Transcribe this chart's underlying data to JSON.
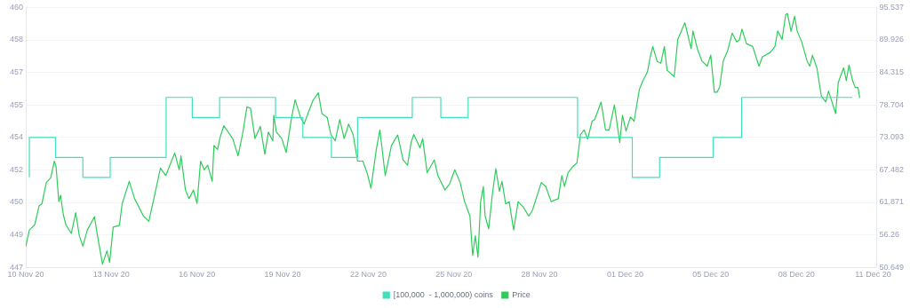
{
  "chart_data": {
    "type": "line",
    "legend": "bottom",
    "grid": "y",
    "marker": "none",
    "xlim": [
      "--11-10",
      "--12-09T19:30"
    ],
    "xticks": [
      {
        "value": "--11-10",
        "label": "10 Nov 20"
      },
      {
        "value": "--11-13",
        "label": "13 Nov 20"
      },
      {
        "value": "--11-16",
        "label": "16 Nov 20"
      },
      {
        "value": "--11-19",
        "label": "19 Nov 20"
      },
      {
        "value": "--11-22",
        "label": "22 Nov 20"
      },
      {
        "value": "--11-25",
        "label": "25 Nov 20"
      },
      {
        "value": "--11-28",
        "label": "28 Nov 20"
      },
      {
        "value": "--12-01",
        "label": "01 Dec 20"
      },
      {
        "value": "--12-04",
        "label": "05 Dec 20"
      },
      {
        "value": "--12-07",
        "label": "08 Dec 20"
      },
      {
        "value": "--12-09T16:30",
        "label": "11 Dec 20"
      }
    ],
    "ylim": [
      447,
      460
    ],
    "yticks": [
      {
        "value": 447,
        "label": "447"
      },
      {
        "value": 448.625,
        "label": "449"
      },
      {
        "value": 450.25,
        "label": "450"
      },
      {
        "value": 451.875,
        "label": "452"
      },
      {
        "value": 453.5,
        "label": "454"
      },
      {
        "value": 455.125,
        "label": "455"
      },
      {
        "value": 456.75,
        "label": "457"
      },
      {
        "value": 458.375,
        "label": "458"
      },
      {
        "value": 460,
        "label": "460"
      }
    ],
    "y2lim": [
      50.649,
      95.537
    ],
    "y2ticks": [
      50.649,
      56.26,
      61.871,
      67.482,
      73.093,
      78.704,
      84.315,
      89.926,
      95.537
    ],
    "series": [
      {
        "name": "[100,000  - 1,000,000) coins",
        "type": "step",
        "color": "#3fe0bb",
        "x": [
          "--11-10T03:00",
          "--11-11T01:00",
          "--11-12T00:00",
          "--11-12T23:00",
          "--11-14T22:00",
          "--11-15T20:00",
          "--11-16T19:00",
          "--11-18T18:00",
          "--11-19T17:00",
          "--11-20T17:00",
          "--11-21T15:00",
          "--11-23T13:00",
          "--11-24T13:00",
          "--11-25T12:00",
          "--11-29T08:00",
          "--12-01T06:00",
          "--12-02T05:00",
          "--12-04T02:00",
          "--12-05T02:00",
          "--12-07T01:00",
          "--12-08T23:00"
        ],
        "values": [
          451.5,
          453.5,
          452.5,
          451.5,
          452.5,
          455.5,
          454.5,
          455.5,
          454.5,
          453.5,
          452.5,
          454.5,
          455.5,
          454.5,
          455.5,
          453.5,
          451.5,
          452.5,
          453.5,
          455.5,
          455.5
        ]
      },
      {
        "name": "Price",
        "type": "line",
        "axis": "y2",
        "color": "#2fcc5b",
        "x": [
          "--11-10T00:00",
          "--11-10T03:00",
          "--11-10T07:30",
          "--11-10T11:15",
          "--11-10T13:30",
          "--11-10T17:15",
          "--11-10T21:00",
          "--11-11T00:00",
          "--11-11T01:30",
          "--11-11T03:45",
          "--11-11T05:15",
          "--11-11T07:30",
          "--11-11T09:45",
          "--11-11T14:15",
          "--11-11T18:00",
          "--11-11T21:00",
          "--11-12T00:00",
          "--11-12T03:45",
          "--11-12T09:45",
          "--11-12T12:00",
          "--11-12T16:30",
          "--11-12T20:15",
          "--11-12T22:30",
          "--11-13T01:30",
          "--11-13T06:45",
          "--11-13T09:00",
          "--11-13T15:00",
          "--11-13T19:30",
          "--11-14T03:00",
          "--11-14T07:30",
          "--11-14T12:45",
          "--11-14T17:15",
          "--11-14T21:45",
          "--11-15T05:15",
          "--11-15T09:00",
          "--11-15T10:30",
          "--11-15T14:15",
          "--11-15T17:15",
          "--11-15T21:00",
          "--11-16T00:00",
          "--11-16T03:00",
          "--11-16T06:00",
          "--11-16T09:00",
          "--11-16T12:45",
          "--11-16T14:15",
          "--11-16T17:15",
          "--11-16T19:30",
          "--11-16T22:30",
          "--11-17T06:00",
          "--11-17T10:30",
          "--11-17T14:15",
          "--11-17T18:00",
          "--11-17T21:00",
          "--11-18T00:45",
          "--11-18T05:15",
          "--11-18T09:00",
          "--11-18T12:00",
          "--11-18T15:45",
          "--11-18T16:30",
          "--11-18T18:45",
          "--11-18T23:15",
          "--11-19T03:00",
          "--11-19T07:30",
          "--11-19T10:30",
          "--11-19T15:00",
          "--11-19T18:00",
          "--11-20T01:30",
          "--11-20T06:00",
          "--11-20T09:00",
          "--11-20T13:30",
          "--11-20T16:30",
          "--11-20T20:15",
          "--11-21T00:00",
          "--11-21T03:45",
          "--11-21T07:30",
          "--11-21T11:15",
          "--11-21T15:00",
          "--11-21T19:30",
          "--11-21T23:15",
          "--11-22T02:15",
          "--11-22T06:45",
          "--11-22T09:45",
          "--11-22T14:15",
          "--11-22T19:30",
          "--11-23T00:45",
          "--11-23T05:15",
          "--11-23T09:00",
          "--11-23T12:00",
          "--11-23T14:15",
          "--11-23T19:30",
          "--11-23T21:45",
          "--11-24T01:30",
          "--11-24T07:30",
          "--11-24T10:30",
          "--11-24T16:30",
          "--11-24T20:15",
          "--11-25T00:45",
          "--11-25T05:15",
          "--11-25T09:00",
          "--11-25T13:30",
          "--11-25T15:45",
          "--11-25T18:00",
          "--11-25T20:15",
          "--11-25T22:30",
          "--11-26T00:45",
          "--11-26T02:15",
          "--11-26T05:15",
          "--11-26T08:15",
          "--11-26T11:15",
          "--11-26T14:15",
          "--11-26T16:30",
          "--11-26T19:30",
          "--11-26T22:30",
          "--11-27T02:15",
          "--11-27T06:00",
          "--11-27T10:30",
          "--11-27T15:00",
          "--11-27T18:00",
          "--11-28T01:30",
          "--11-28T05:15",
          "--11-28T09:45",
          "--11-28T15:45",
          "--11-28T18:45",
          "--11-28T21:00",
          "--11-29T00:00",
          "--11-29T03:45",
          "--11-29T07:30",
          "--11-29T10:30",
          "--11-29T13:30",
          "--11-29T16:30",
          "--11-29T20:15",
          "--11-29T22:30",
          "--11-30T03:45",
          "--11-30T07:30",
          "--11-30T10:30",
          "--11-30T15:00",
          "--11-30T19:30",
          "--11-30T21:45",
          "--12-01T00:45",
          "--12-01T04:30",
          "--12-01T07:30",
          "--12-01T12:00",
          "--12-01T15:00",
          "--12-01T18:45",
          "--12-01T21:00",
          "--12-01T23:15",
          "--12-02T03:00",
          "--12-02T06:00",
          "--12-02T09:00",
          "--12-02T11:15",
          "--12-02T17:15",
          "--12-02T20:15",
          "--12-03T02:15",
          "--12-03T07:30",
          "--12-03T09:00",
          "--12-03T12:45",
          "--12-03T16:30",
          "--12-03T21:00",
          "--12-04T00:00",
          "--12-04T03:00",
          "--12-04T05:15",
          "--12-04T07:30",
          "--12-04T10:30",
          "--12-04T14:15",
          "--12-04T18:00",
          "--12-04T21:45",
          "--12-05T00:00",
          "--12-05T02:15",
          "--12-05T06:00",
          "--12-05T11:15",
          "--12-05T16:30",
          "--12-05T19:30",
          "--12-06T02:15",
          "--12-06T06:00",
          "--12-06T08:15",
          "--12-06T12:00",
          "--12-06T15:00",
          "--12-06T16:30",
          "--12-06T19:30",
          "--12-06T22:30",
          "--12-07T00:45",
          "--12-07T04:30",
          "--12-07T09:00",
          "--12-07T11:15",
          "--12-07T13:30",
          "--12-07T17:15",
          "--12-07T21:00",
          "--12-08T00:45",
          "--12-08T03:00",
          "--12-08T06:00",
          "--12-08T09:00",
          "--12-08T11:15",
          "--12-08T15:45",
          "--12-08T18:00",
          "--12-08T20:15",
          "--12-08T23:15",
          "--12-09T01:30",
          "--12-09T03:45",
          "--12-09T05:15"
        ],
        "values": [
          54.3,
          57.1,
          58.0,
          61.3,
          61.6,
          65.3,
          66.1,
          69.0,
          68.0,
          62.0,
          63.1,
          59.8,
          58.0,
          56.5,
          60.1,
          56.1,
          54.3,
          57.1,
          59.4,
          56.5,
          51.2,
          53.5,
          51.5,
          57.6,
          57.9,
          61.6,
          65.5,
          62.5,
          59.5,
          58.6,
          63.5,
          67.8,
          66.5,
          70.4,
          67.5,
          69.9,
          64.0,
          62.5,
          64.0,
          61.7,
          69.0,
          67.5,
          68.3,
          65.5,
          71.7,
          71.0,
          73.2,
          75.1,
          72.9,
          69.9,
          73.6,
          78.4,
          78.1,
          72.9,
          75.0,
          70.2,
          74.0,
          72.5,
          76.9,
          74.0,
          72.9,
          70.5,
          76.5,
          79.6,
          76.6,
          75.4,
          79.5,
          80.8,
          77.2,
          76.5,
          73.6,
          72.5,
          76.2,
          72.9,
          75.4,
          73.6,
          69.0,
          69.0,
          66.8,
          64.3,
          71.0,
          74.4,
          66.5,
          71.7,
          73.5,
          69.2,
          68.3,
          72.2,
          73.6,
          71.3,
          72.9,
          67.0,
          69.2,
          66.5,
          64.0,
          65.0,
          67.5,
          65.3,
          62.0,
          59.5,
          52.7,
          56.1,
          52.4,
          62.0,
          64.6,
          59.5,
          57.3,
          63.1,
          67.7,
          63.8,
          65.5,
          61.6,
          62.0,
          57.1,
          62.0,
          61.0,
          59.5,
          60.5,
          65.3,
          64.6,
          62.0,
          62.5,
          66.5,
          64.6,
          67.0,
          68.0,
          68.7,
          73.6,
          74.4,
          72.8,
          75.9,
          76.2,
          79.2,
          74.4,
          74.4,
          78.7,
          72.2,
          76.9,
          74.2,
          76.6,
          75.9,
          81.4,
          82.9,
          84.4,
          86.9,
          88.8,
          86.2,
          85.9,
          88.8,
          84.7,
          83.6,
          90.0,
          92.9,
          88.4,
          91.5,
          88.4,
          86.3,
          85.4,
          87.3,
          80.9,
          80.9,
          81.8,
          86.3,
          88.1,
          91.1,
          89.6,
          89.9,
          91.8,
          89.3,
          88.8,
          85.4,
          87.0,
          87.8,
          88.8,
          91.5,
          90.0,
          94.3,
          94.5,
          91.4,
          94.0,
          91.4,
          89.6,
          86.3,
          85.4,
          87.3,
          85.1,
          80.2,
          79.2,
          81.1,
          79.2,
          77.2,
          82.6,
          85.1,
          82.9,
          85.6,
          82.9,
          81.7,
          81.7,
          79.9
        ]
      }
    ]
  }
}
